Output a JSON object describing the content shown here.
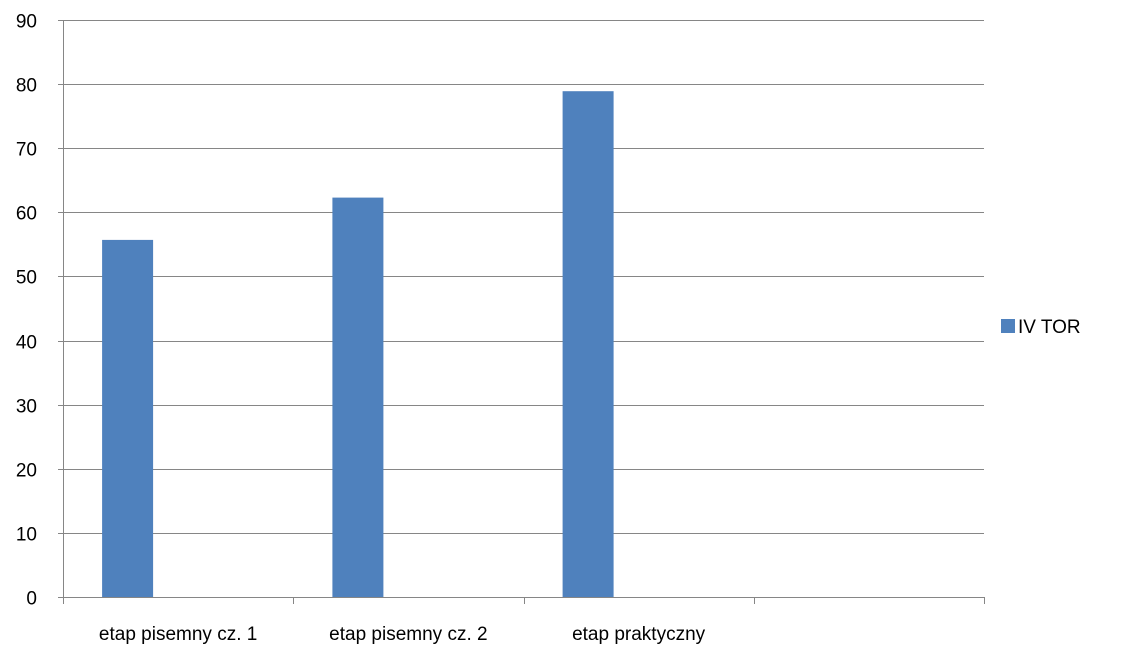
{
  "chart_data": {
    "type": "bar",
    "title": "",
    "xlabel": "",
    "ylabel": "",
    "categories": [
      "etap pisemny cz. 1",
      "etap pisemny cz. 2",
      "etap praktyczny",
      ""
    ],
    "series": [
      {
        "name": "IV TOR",
        "values": [
          55.7,
          62.3,
          78.9,
          null
        ],
        "color": "#4f81bd"
      }
    ],
    "ylim": [
      0,
      90
    ],
    "yticks": [
      0,
      10,
      20,
      30,
      40,
      50,
      60,
      70,
      80,
      90
    ],
    "grid": "horizontal-major",
    "legend": "right"
  }
}
